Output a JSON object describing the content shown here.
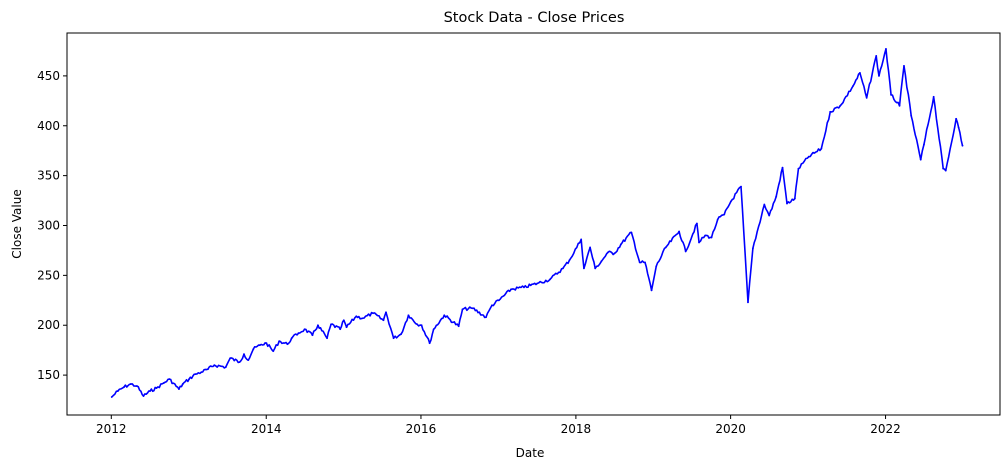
{
  "chart_data": {
    "type": "line",
    "title": "Stock Data - Close Prices",
    "xlabel": "Date",
    "ylabel": "Close Value",
    "xlim": [
      "2011-06-06",
      "2023-06-25"
    ],
    "ylim": [
      110,
      493
    ],
    "grid": false,
    "legend": "none",
    "x_ticks": [
      {
        "value": "2012-01-01",
        "label": "2012"
      },
      {
        "value": "2014-01-01",
        "label": "2014"
      },
      {
        "value": "2016-01-01",
        "label": "2016"
      },
      {
        "value": "2018-01-01",
        "label": "2018"
      },
      {
        "value": "2020-01-01",
        "label": "2020"
      },
      {
        "value": "2022-01-01",
        "label": "2022"
      }
    ],
    "y_ticks": [
      150,
      200,
      250,
      300,
      350,
      400,
      450
    ],
    "series": [
      {
        "color": "#0000ff",
        "points": [
          [
            "2012-01-03",
            128
          ],
          [
            "2012-02-01",
            134
          ],
          [
            "2012-03-01",
            138
          ],
          [
            "2012-04-02",
            141
          ],
          [
            "2012-05-01",
            139
          ],
          [
            "2012-06-01",
            129
          ],
          [
            "2012-07-02",
            134
          ],
          [
            "2012-08-01",
            137
          ],
          [
            "2012-09-04",
            142
          ],
          [
            "2012-10-01",
            146
          ],
          [
            "2012-11-15",
            136
          ],
          [
            "2012-12-03",
            141
          ],
          [
            "2013-01-02",
            146
          ],
          [
            "2013-02-01",
            151
          ],
          [
            "2013-03-01",
            153
          ],
          [
            "2013-04-01",
            156
          ],
          [
            "2013-05-01",
            160
          ],
          [
            "2013-06-24",
            158
          ],
          [
            "2013-07-15",
            167
          ],
          [
            "2013-08-28",
            163
          ],
          [
            "2013-09-18",
            171
          ],
          [
            "2013-10-08",
            165
          ],
          [
            "2013-11-01",
            176
          ],
          [
            "2013-12-02",
            180
          ],
          [
            "2014-01-02",
            182
          ],
          [
            "2014-02-03",
            174
          ],
          [
            "2014-03-03",
            184
          ],
          [
            "2014-04-11",
            181
          ],
          [
            "2014-05-01",
            187
          ],
          [
            "2014-06-02",
            192
          ],
          [
            "2014-07-01",
            196
          ],
          [
            "2014-08-07",
            190
          ],
          [
            "2014-09-02",
            200
          ],
          [
            "2014-10-15",
            187
          ],
          [
            "2014-11-03",
            201
          ],
          [
            "2014-12-16",
            196
          ],
          [
            "2015-01-02",
            205
          ],
          [
            "2015-01-15",
            198
          ],
          [
            "2015-03-02",
            209
          ],
          [
            "2015-04-01",
            207
          ],
          [
            "2015-05-20",
            212
          ],
          [
            "2015-07-08",
            205
          ],
          [
            "2015-07-20",
            213
          ],
          [
            "2015-08-25",
            187
          ],
          [
            "2015-09-29",
            191
          ],
          [
            "2015-11-03",
            210
          ],
          [
            "2015-12-14",
            201
          ],
          [
            "2016-01-04",
            200
          ],
          [
            "2016-02-11",
            182
          ],
          [
            "2016-03-01",
            196
          ],
          [
            "2016-04-20",
            210
          ],
          [
            "2016-06-27",
            199
          ],
          [
            "2016-07-15",
            216
          ],
          [
            "2016-09-01",
            217
          ],
          [
            "2016-11-03",
            208
          ],
          [
            "2016-12-01",
            220
          ],
          [
            "2017-01-03",
            225
          ],
          [
            "2017-03-01",
            236
          ],
          [
            "2017-05-01",
            238
          ],
          [
            "2017-07-03",
            242
          ],
          [
            "2017-09-01",
            246
          ],
          [
            "2017-11-01",
            257
          ],
          [
            "2017-12-01",
            265
          ],
          [
            "2018-01-26",
            286
          ],
          [
            "2018-02-08",
            257
          ],
          [
            "2018-03-09",
            278
          ],
          [
            "2018-04-02",
            257
          ],
          [
            "2018-05-01",
            264
          ],
          [
            "2018-06-01",
            273
          ],
          [
            "2018-07-02",
            272
          ],
          [
            "2018-08-01",
            281
          ],
          [
            "2018-09-20",
            293
          ],
          [
            "2018-10-29",
            263
          ],
          [
            "2018-11-23",
            263
          ],
          [
            "2018-12-24",
            235
          ],
          [
            "2019-01-15",
            259
          ],
          [
            "2019-03-01",
            278
          ],
          [
            "2019-05-03",
            294
          ],
          [
            "2019-06-03",
            274
          ],
          [
            "2019-07-26",
            302
          ],
          [
            "2019-08-05",
            283
          ],
          [
            "2019-09-03",
            290
          ],
          [
            "2019-10-03",
            288
          ],
          [
            "2019-11-01",
            306
          ],
          [
            "2019-12-02",
            311
          ],
          [
            "2020-01-02",
            324
          ],
          [
            "2020-02-19",
            339
          ],
          [
            "2020-03-23",
            223
          ],
          [
            "2020-04-15",
            277
          ],
          [
            "2020-06-08",
            321
          ],
          [
            "2020-07-01",
            310
          ],
          [
            "2020-08-03",
            329
          ],
          [
            "2020-09-02",
            358
          ],
          [
            "2020-09-23",
            322
          ],
          [
            "2020-10-30",
            327
          ],
          [
            "2020-11-16",
            357
          ],
          [
            "2021-01-04",
            369
          ],
          [
            "2021-03-04",
            377
          ],
          [
            "2021-04-15",
            414
          ],
          [
            "2021-06-01",
            420
          ],
          [
            "2021-08-01",
            440
          ],
          [
            "2021-09-02",
            453
          ],
          [
            "2021-10-04",
            428
          ],
          [
            "2021-11-18",
            470
          ],
          [
            "2021-12-01",
            450
          ],
          [
            "2022-01-03",
            477
          ],
          [
            "2022-01-27",
            431
          ],
          [
            "2022-03-08",
            420
          ],
          [
            "2022-03-29",
            460
          ],
          [
            "2022-05-02",
            410
          ],
          [
            "2022-06-16",
            366
          ],
          [
            "2022-07-01",
            381
          ],
          [
            "2022-08-16",
            429
          ],
          [
            "2022-09-30",
            357
          ],
          [
            "2022-10-12",
            355
          ],
          [
            "2022-11-30",
            407
          ],
          [
            "2022-12-12",
            398
          ],
          [
            "2022-12-30",
            380
          ]
        ]
      }
    ]
  }
}
